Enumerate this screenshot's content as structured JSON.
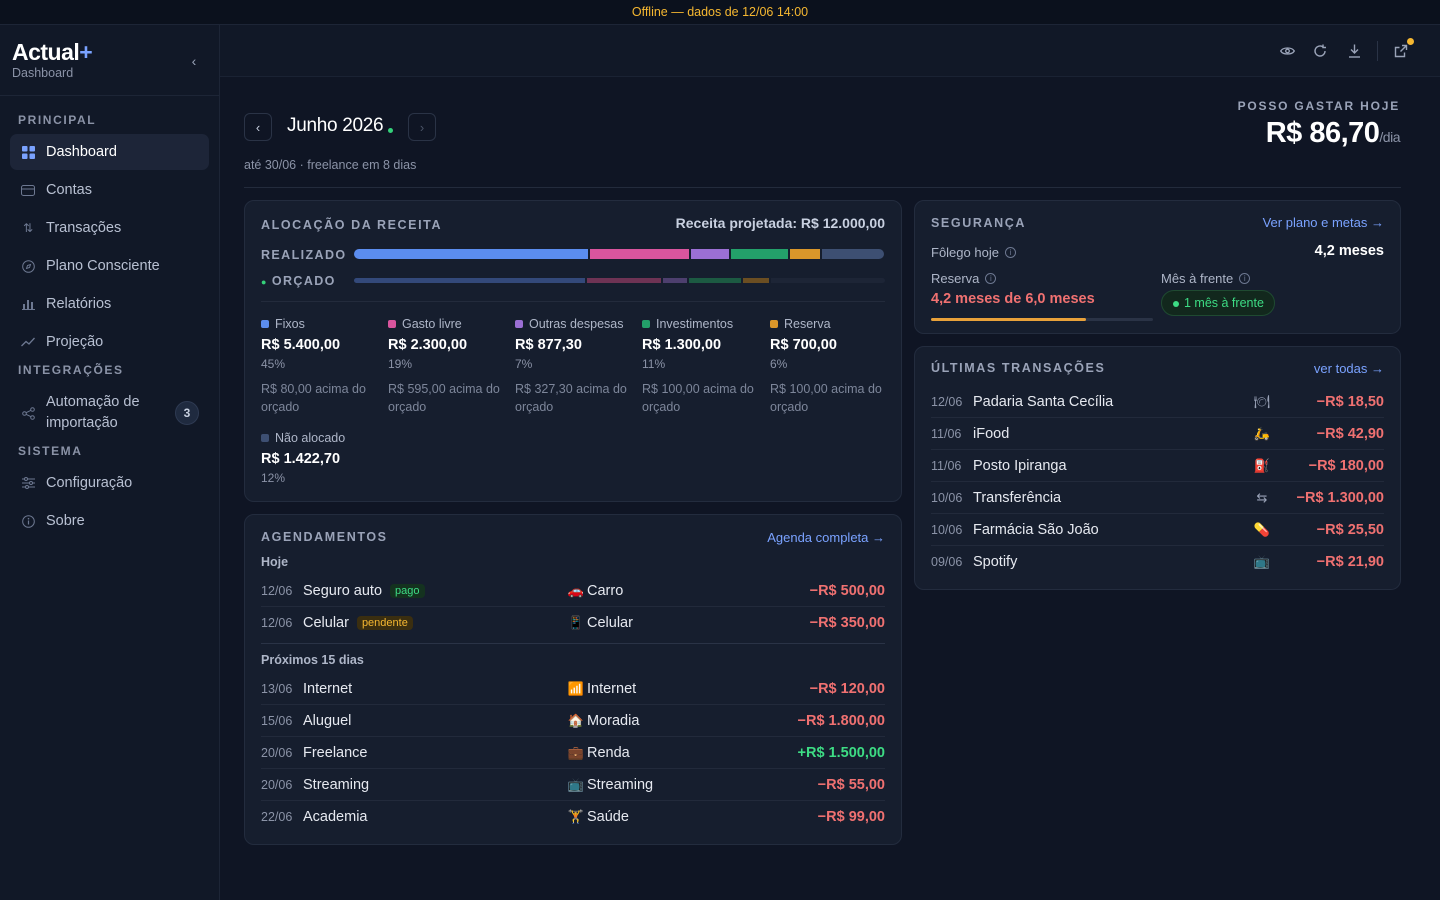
{
  "offline_banner": "Offline — dados de 12/06 14:00",
  "brand": {
    "name": "Actual",
    "plus": "+",
    "subtitle": "Dashboard"
  },
  "sidebar": {
    "sections": {
      "principal": "PRINCIPAL",
      "integracoes": "INTEGRAÇÕES",
      "sistema": "SISTEMA"
    },
    "items": [
      {
        "label": "Dashboard",
        "icon": "grid-icon",
        "active": true
      },
      {
        "label": "Contas",
        "icon": "card-icon"
      },
      {
        "label": "Transações",
        "icon": "arrows-updown-icon"
      },
      {
        "label": "Plano Consciente",
        "icon": "compass-icon"
      },
      {
        "label": "Relatórios",
        "icon": "bar-chart-icon"
      },
      {
        "label": "Projeção",
        "icon": "trend-icon"
      },
      {
        "label": "Automação de importação",
        "icon": "share-nodes-icon",
        "badge": "3"
      },
      {
        "label": "Configuração",
        "icon": "sliders-icon"
      },
      {
        "label": "Sobre",
        "icon": "info-icon"
      }
    ]
  },
  "header": {
    "month": "Junho 2026",
    "subtitle": "até 30/06 · freelance em 8 dias",
    "spend_label": "POSSO GASTAR HOJE",
    "spend_value": "R$ 86,70",
    "spend_unit": "/dia"
  },
  "allocation": {
    "title": "ALOCAÇÃO DA RECEITA",
    "projected": "Receita projetada: R$ 12.000,00",
    "realizado_label": "REALIZADO",
    "orcado_label": "ORÇADO",
    "realizado_fractions": [
      0.45,
      0.19,
      0.073,
      0.108,
      0.058,
      0.119
    ],
    "orcado_fractions": [
      0.443,
      0.142,
      0.046,
      0.1,
      0.05,
      0.219
    ],
    "colors": [
      "#5b8def",
      "#d9559e",
      "#9b6fd4",
      "#23a06a",
      "#d9962a",
      "#3d4f72"
    ],
    "orcado_colors": [
      "#33497a",
      "#6e3354",
      "#4d3f6e",
      "#1c5a42",
      "#6b4e22",
      "#1d2536"
    ],
    "categories": [
      {
        "name": "Fixos",
        "amount": "R$ 5.400,00",
        "pct": "45%",
        "note": "R$ 80,00 acima do orçado"
      },
      {
        "name": "Gasto livre",
        "amount": "R$ 2.300,00",
        "pct": "19%",
        "note": "R$ 595,00 acima do orçado"
      },
      {
        "name": "Outras despesas",
        "amount": "R$ 877,30",
        "pct": "7%",
        "note": "R$ 327,30 acima do orçado"
      },
      {
        "name": "Investimentos",
        "amount": "R$ 1.300,00",
        "pct": "11%",
        "note": "R$ 100,00 acima do orçado"
      },
      {
        "name": "Reserva",
        "amount": "R$ 700,00",
        "pct": "6%",
        "note": "R$ 100,00 acima do orçado"
      },
      {
        "name": "Não alocado",
        "amount": "R$ 1.422,70",
        "pct": "12%",
        "note": ""
      }
    ]
  },
  "schedules": {
    "title": "AGENDAMENTOS",
    "link": "Agenda completa →",
    "today_label": "Hoje",
    "next_label": "Próximos 15 dias",
    "today": [
      {
        "date": "12/06",
        "name": "Seguro auto",
        "badge": "pago",
        "badge_type": "pago",
        "cat_icon": "🚗",
        "category": "Carro",
        "amount": "−R$ 500,00",
        "sign": "neg"
      },
      {
        "date": "12/06",
        "name": "Celular",
        "badge": "pendente",
        "badge_type": "pend",
        "cat_icon": "📱",
        "category": "Celular",
        "amount": "−R$ 350,00",
        "sign": "neg"
      }
    ],
    "next": [
      {
        "date": "13/06",
        "name": "Internet",
        "cat_icon": "📶",
        "category": "Internet",
        "amount": "−R$ 120,00",
        "sign": "neg"
      },
      {
        "date": "15/06",
        "name": "Aluguel",
        "cat_icon": "🏠",
        "category": "Moradia",
        "amount": "−R$ 1.800,00",
        "sign": "neg"
      },
      {
        "date": "20/06",
        "name": "Freelance",
        "cat_icon": "💼",
        "category": "Renda",
        "amount": "+R$ 1.500,00",
        "sign": "pos"
      },
      {
        "date": "20/06",
        "name": "Streaming",
        "cat_icon": "📺",
        "category": "Streaming",
        "amount": "−R$ 55,00",
        "sign": "neg"
      },
      {
        "date": "22/06",
        "name": "Academia",
        "cat_icon": "🏋",
        "category": "Saúde",
        "amount": "−R$ 99,00",
        "sign": "neg"
      }
    ]
  },
  "security": {
    "title": "SEGURANÇA",
    "link": "Ver plano e metas →",
    "folego_label": "Fôlego hoje",
    "folego_value": "4,2 meses",
    "reserve_label": "Reserva",
    "reserve_value": "4,2 meses de 6,0 meses",
    "reserve_progress": 0.7,
    "ahead_label": "Mês à frente",
    "ahead_pill": "1 mês à frente"
  },
  "transactions": {
    "title": "ÚLTIMAS TRANSAÇÕES",
    "link": "ver todas →",
    "rows": [
      {
        "date": "12/06",
        "name": "Padaria Santa Cecília",
        "icon": "🍽",
        "amount": "−R$ 18,50"
      },
      {
        "date": "11/06",
        "name": "iFood",
        "icon": "🛵",
        "amount": "−R$ 42,90"
      },
      {
        "date": "11/06",
        "name": "Posto Ipiranga",
        "icon": "⛽",
        "amount": "−R$ 180,00"
      },
      {
        "date": "10/06",
        "name": "Transferência",
        "icon": "⇆",
        "amount": "−R$ 1.300,00"
      },
      {
        "date": "10/06",
        "name": "Farmácia São João",
        "icon": "💊",
        "amount": "−R$ 25,50"
      },
      {
        "date": "09/06",
        "name": "Spotify",
        "icon": "📺",
        "amount": "−R$ 21,90"
      }
    ]
  }
}
